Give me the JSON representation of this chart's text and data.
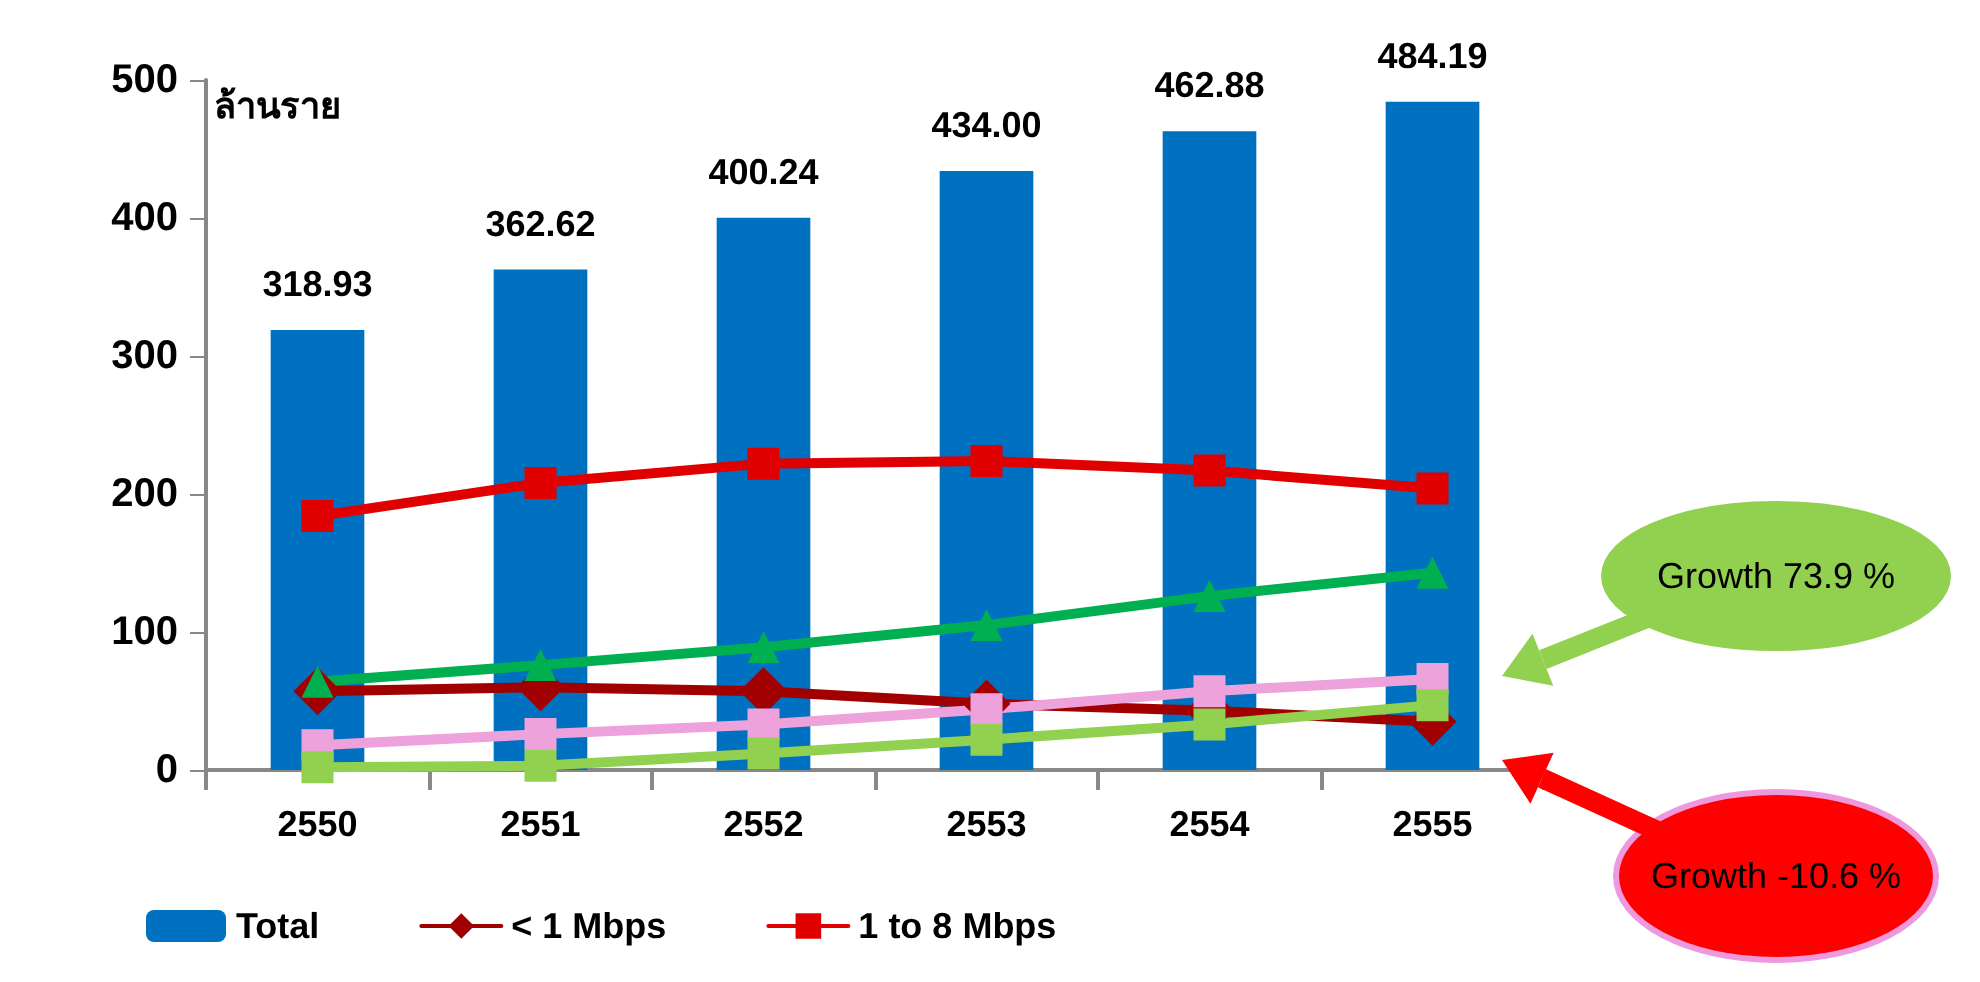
{
  "chart_data": {
    "type": "bar",
    "ylabel": "ล้านราย",
    "categories": [
      "2550",
      "2551",
      "2552",
      "2553",
      "2554",
      "2555"
    ],
    "series": [
      {
        "name": "Total",
        "color": "#0070c0",
        "values": [
          318.93,
          362.62,
          400.24,
          434.0,
          462.88,
          484.19
        ],
        "value_labels": [
          "318.93",
          "362.62",
          "400.24",
          "434.00",
          "462.88",
          "484.19"
        ]
      },
      {
        "name": "< 1 Mbps",
        "type": "line",
        "color": "#a00000",
        "marker": "diamond",
        "values": [
          57,
          60,
          57,
          48,
          43,
          35
        ]
      },
      {
        "name": "1 to 8 Mbps",
        "type": "line",
        "color": "#e00000",
        "marker": "square",
        "values": [
          184,
          208,
          222,
          224,
          217,
          204
        ]
      },
      {
        "type": "line",
        "color": "#00b050",
        "marker": "triangle",
        "values": [
          64,
          76,
          89,
          105,
          126,
          143
        ]
      },
      {
        "type": "line",
        "color": "#eea2dc",
        "marker": "square",
        "values": [
          18,
          26,
          33,
          44,
          57,
          66
        ]
      },
      {
        "type": "line",
        "color": "#92d050",
        "marker": "square",
        "values": [
          2,
          3,
          12,
          22,
          33,
          47
        ]
      }
    ],
    "ylim": [
      0,
      500
    ],
    "yticks": [
      0,
      100,
      200,
      300,
      400,
      500
    ],
    "grid": false,
    "legend": "bottom",
    "annotations": [
      "Growth 73.9 %",
      "Growth -10.6 %"
    ]
  }
}
